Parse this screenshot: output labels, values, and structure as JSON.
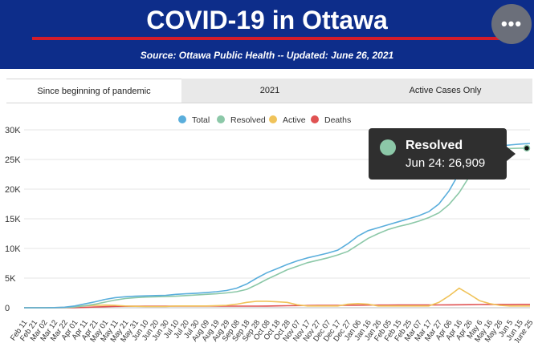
{
  "header": {
    "title": "COVID-19 in Ottawa",
    "subtitle": "Source:  Ottawa Public Health -- Updated:  June 26, 2021",
    "more_label": "•••"
  },
  "tabs": [
    {
      "label": "Since beginning of pandemic",
      "active": true
    },
    {
      "label": "2021",
      "active": false
    },
    {
      "label": "Active Cases Only",
      "active": false
    }
  ],
  "tooltip": {
    "series_name": "Resolved",
    "value_text": "Jun 24: 26,909"
  },
  "chart_data": {
    "type": "line",
    "title": "",
    "xlabel": "",
    "ylabel": "",
    "ylim": [
      0,
      30000
    ],
    "y_ticks": [
      {
        "value": 0,
        "label": "0"
      },
      {
        "value": 5000,
        "label": "5K"
      },
      {
        "value": 10000,
        "label": "10K"
      },
      {
        "value": 15000,
        "label": "15K"
      },
      {
        "value": 20000,
        "label": "20K"
      },
      {
        "value": 25000,
        "label": "25K"
      },
      {
        "value": 30000,
        "label": "30K"
      }
    ],
    "legend_position": "top-center",
    "grid": true,
    "x": [
      "Feb 11",
      "Feb 21",
      "Mar 02",
      "Mar 12",
      "Mar 22",
      "Apr 01",
      "Apr 11",
      "Apr 21",
      "May 01",
      "May 11",
      "May 21",
      "May 31",
      "Jun 10",
      "Jun 20",
      "Jun 30",
      "Jul 10",
      "Jul 20",
      "Jul 30",
      "Aug 09",
      "Aug 19",
      "Aug 29",
      "Sep 08",
      "Sep 18",
      "Sep 28",
      "Oct 08",
      "Oct 18",
      "Oct 28",
      "Nov 07",
      "Nov 17",
      "Nov 27",
      "Dec 07",
      "Dec 17",
      "Dec 27",
      "Jan 06",
      "Jan 16",
      "Jan 26",
      "Feb 05",
      "Feb 15",
      "Feb 25",
      "Mar 07",
      "Mar 17",
      "Mar 27",
      "Apr 06",
      "Apr 16",
      "Apr 26",
      "May 6",
      "May 16",
      "May 26",
      "Jun 5",
      "Jun 15",
      "June 25"
    ],
    "series": [
      {
        "name": "Total",
        "color": "#5aaedc",
        "values": [
          0,
          0,
          5,
          30,
          100,
          300,
          650,
          1000,
          1400,
          1700,
          1850,
          1950,
          2000,
          2050,
          2100,
          2250,
          2350,
          2450,
          2550,
          2700,
          2900,
          3300,
          4000,
          5000,
          5900,
          6600,
          7300,
          7900,
          8400,
          8800,
          9200,
          9700,
          10800,
          12100,
          13000,
          13500,
          14000,
          14500,
          15000,
          15500,
          16200,
          17500,
          19700,
          22700,
          25300,
          26600,
          27100,
          27300,
          27450,
          27600,
          27700
        ]
      },
      {
        "name": "Resolved",
        "color": "#8cc8a8",
        "values": [
          0,
          0,
          0,
          5,
          30,
          120,
          320,
          600,
          950,
          1300,
          1550,
          1700,
          1800,
          1850,
          1900,
          1950,
          2050,
          2150,
          2250,
          2350,
          2500,
          2700,
          3100,
          3900,
          4800,
          5600,
          6400,
          7000,
          7600,
          8000,
          8400,
          8900,
          9500,
          10600,
          11700,
          12500,
          13200,
          13700,
          14100,
          14600,
          15200,
          16000,
          17400,
          19400,
          22100,
          24600,
          26100,
          26700,
          26850,
          26900,
          26909
        ]
      },
      {
        "name": "Active",
        "color": "#f0c35a",
        "values": [
          0,
          0,
          5,
          25,
          70,
          180,
          330,
          400,
          450,
          400,
          300,
          250,
          200,
          200,
          200,
          300,
          300,
          300,
          300,
          350,
          400,
          600,
          900,
          1100,
          1100,
          1000,
          900,
          500,
          300,
          300,
          300,
          300,
          600,
          700,
          600,
          300,
          300,
          300,
          300,
          300,
          300,
          900,
          2000,
          3300,
          2300,
          1200,
          700,
          400,
          300,
          300,
          300
        ]
      },
      {
        "name": "Deaths",
        "color": "#e05252",
        "values": [
          0,
          0,
          0,
          0,
          5,
          20,
          60,
          120,
          180,
          230,
          250,
          260,
          260,
          265,
          265,
          265,
          265,
          266,
          266,
          266,
          267,
          267,
          268,
          272,
          285,
          310,
          340,
          360,
          380,
          390,
          400,
          410,
          420,
          430,
          440,
          445,
          450,
          455,
          455,
          460,
          465,
          470,
          480,
          500,
          520,
          540,
          550,
          555,
          560,
          565,
          570
        ]
      }
    ],
    "highlight": {
      "series": "Resolved",
      "x": "Jun 24",
      "value": 26909
    }
  }
}
